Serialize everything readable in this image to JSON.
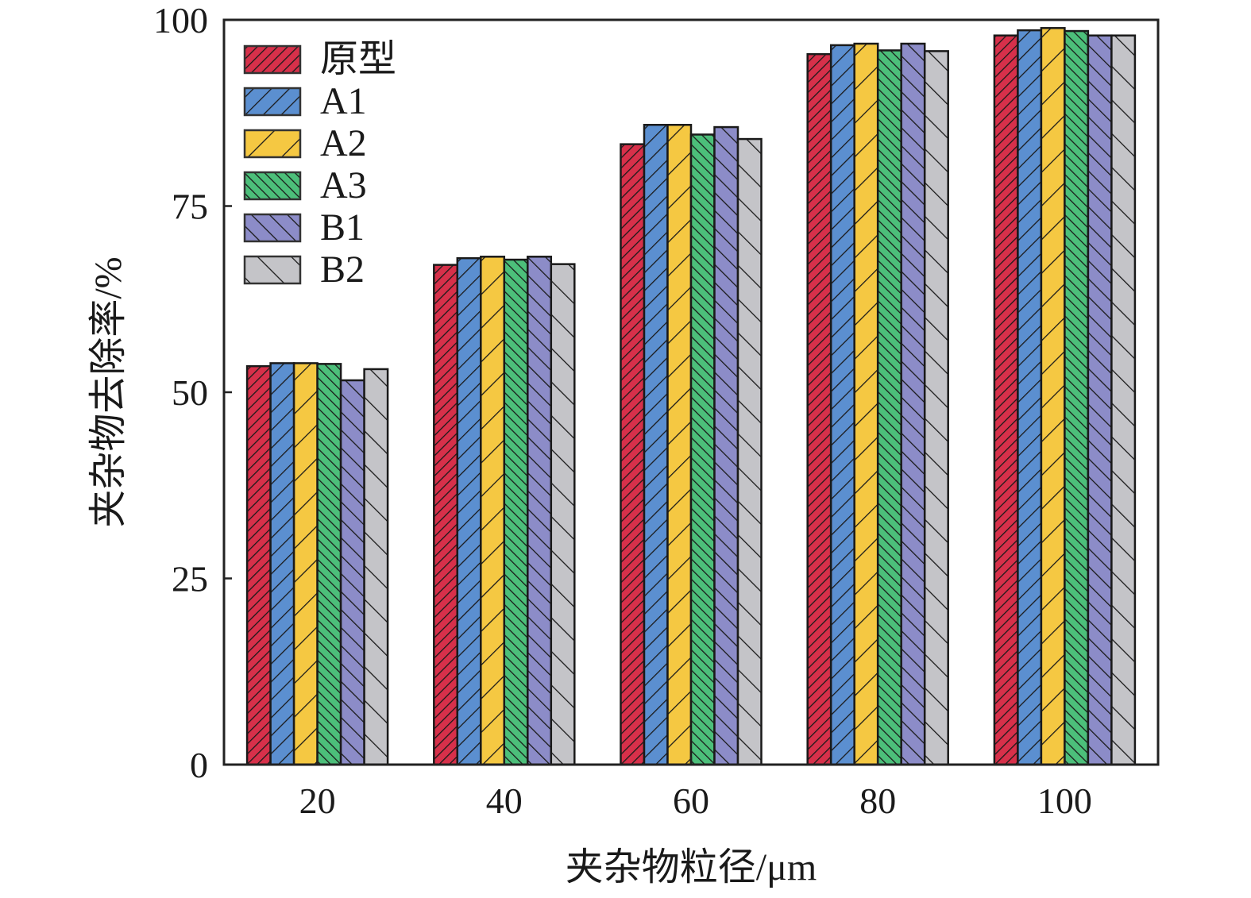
{
  "chart_data": {
    "type": "bar",
    "title": "",
    "xlabel": "夹杂物粒径/μm",
    "ylabel": "夹杂物去除率/%",
    "categories": [
      "20",
      "40",
      "60",
      "80",
      "100"
    ],
    "ylim": [
      0,
      100
    ],
    "yticks": [
      "0",
      "25",
      "50",
      "75",
      "100"
    ],
    "grid": false,
    "legend_position": "top-left",
    "series": [
      {
        "name": "原型",
        "color": "#d7304a",
        "values": [
          53.5,
          67.1,
          83.3,
          95.4,
          97.9
        ]
      },
      {
        "name": "A1",
        "color": "#5b8fd0",
        "values": [
          53.9,
          68.0,
          85.9,
          96.6,
          98.6
        ]
      },
      {
        "name": "A2",
        "color": "#f5c842",
        "values": [
          53.9,
          68.2,
          85.9,
          96.8,
          98.9
        ]
      },
      {
        "name": "A3",
        "color": "#4cbf7a",
        "values": [
          53.8,
          67.8,
          84.6,
          95.9,
          98.5
        ]
      },
      {
        "name": "B1",
        "color": "#8c8cc8",
        "values": [
          51.6,
          68.2,
          85.6,
          96.8,
          97.9
        ]
      },
      {
        "name": "B2",
        "color": "#c4c4c8",
        "values": [
          53.1,
          67.2,
          84.0,
          95.8,
          97.9
        ]
      }
    ]
  }
}
